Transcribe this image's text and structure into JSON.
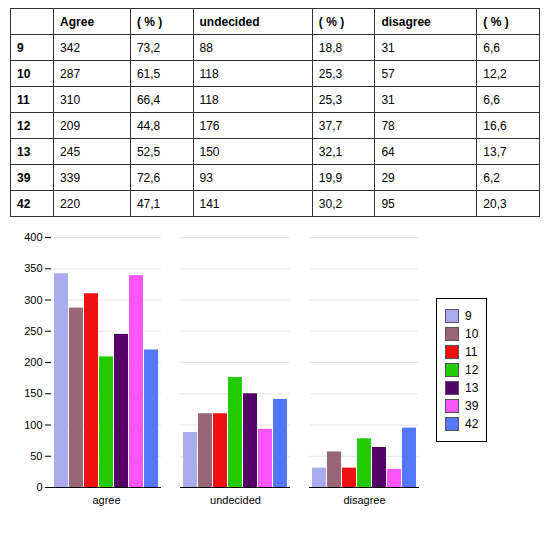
{
  "chart_data": [
    {
      "type": "table",
      "columns": [
        "Agree",
        "( % )",
        "undecided",
        "( % )",
        "disagree",
        "( % )"
      ],
      "rows": [
        {
          "label": "9",
          "cells": [
            342,
            "73,2",
            88,
            "18,8",
            31,
            "6,6"
          ]
        },
        {
          "label": "10",
          "cells": [
            287,
            "61,5",
            118,
            "25,3",
            57,
            "12,2"
          ]
        },
        {
          "label": "11",
          "cells": [
            310,
            "66,4",
            118,
            "25,3",
            31,
            "6,6"
          ]
        },
        {
          "label": "12",
          "cells": [
            209,
            "44,8",
            176,
            "37,7",
            78,
            "16,6"
          ]
        },
        {
          "label": "13",
          "cells": [
            245,
            "52,5",
            150,
            "32,1",
            64,
            "13,7"
          ]
        },
        {
          "label": "39",
          "cells": [
            339,
            "72,6",
            93,
            "19,9",
            29,
            "6,2"
          ]
        },
        {
          "label": "42",
          "cells": [
            220,
            "47,1",
            141,
            "30,2",
            95,
            "20,3"
          ]
        }
      ]
    },
    {
      "type": "bar",
      "categories": [
        "agree",
        "undecided",
        "disagree"
      ],
      "series": [
        {
          "name": "9",
          "color": "#aaaaee",
          "values": [
            342,
            88,
            31
          ]
        },
        {
          "name": "10",
          "color": "#996677",
          "values": [
            287,
            118,
            57
          ]
        },
        {
          "name": "11",
          "color": "#ee1111",
          "values": [
            310,
            118,
            31
          ]
        },
        {
          "name": "12",
          "color": "#22cc00",
          "values": [
            209,
            176,
            78
          ]
        },
        {
          "name": "13",
          "color": "#550066",
          "values": [
            245,
            150,
            64
          ]
        },
        {
          "name": "39",
          "color": "#ff55ff",
          "values": [
            339,
            93,
            29
          ]
        },
        {
          "name": "42",
          "color": "#5577ff",
          "values": [
            220,
            141,
            95
          ]
        }
      ],
      "ylim": [
        0,
        400
      ],
      "yticks": [
        0,
        50,
        100,
        150,
        200,
        250,
        300,
        350,
        400
      ],
      "grid": true,
      "legend": "right"
    }
  ]
}
